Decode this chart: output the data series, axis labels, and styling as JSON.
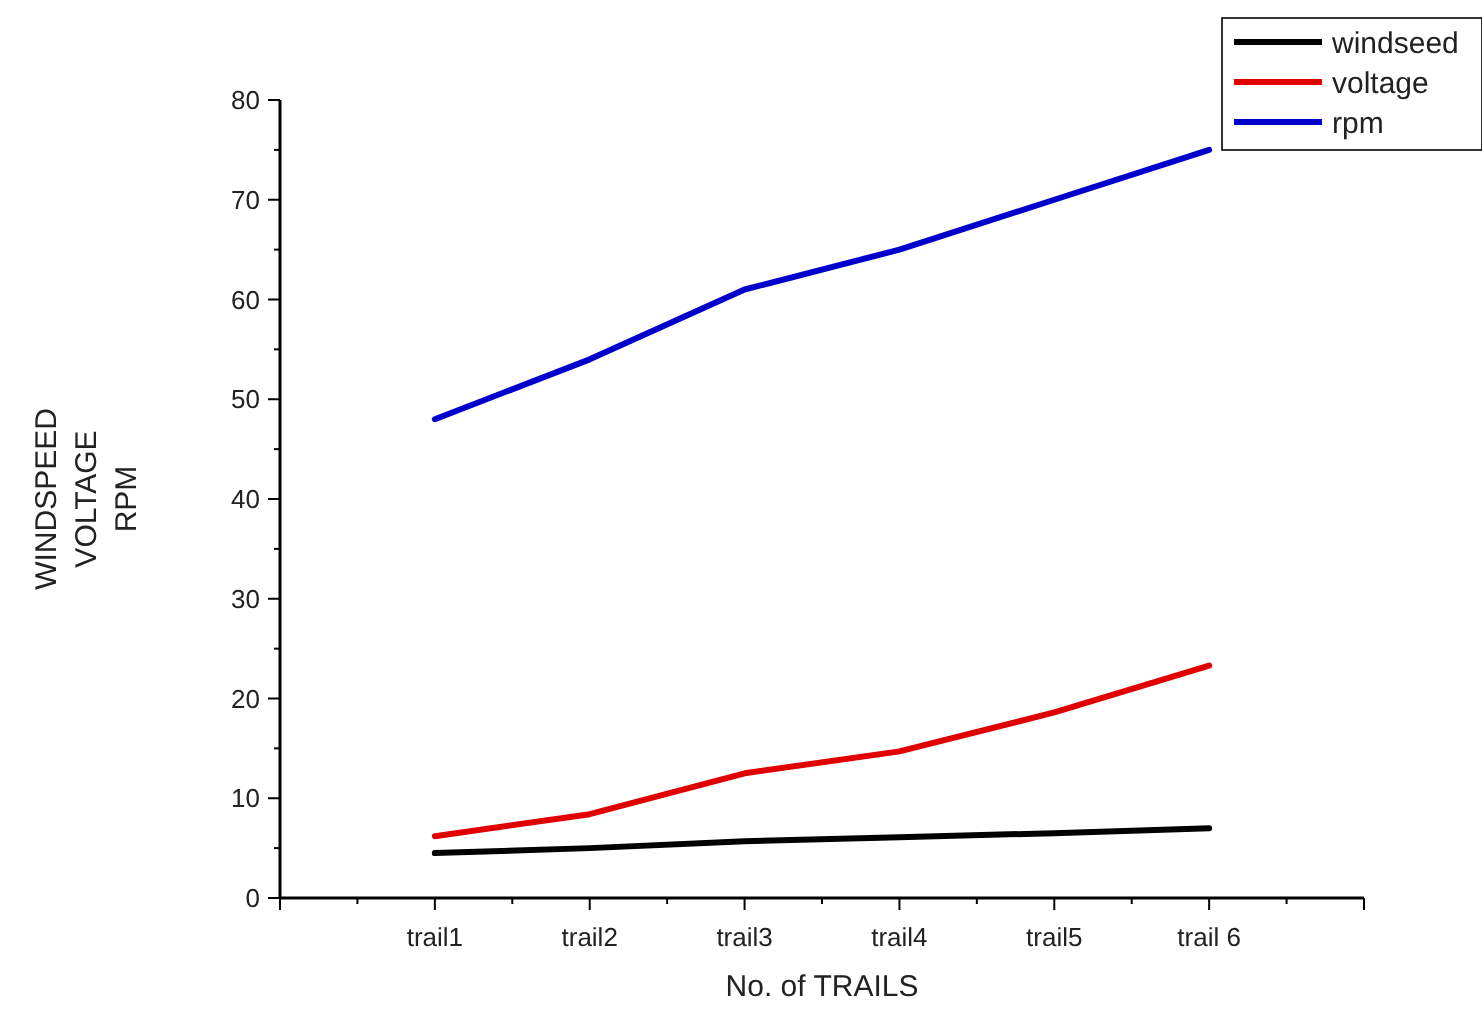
{
  "chart_data": {
    "type": "line",
    "xlabel": "No. of TRAILS",
    "ylabel": "WINDSPEED\nVOLTAGE\nRPM",
    "categories": [
      "trail1",
      "trail2",
      "trail3",
      "trail4",
      "trail5",
      "trail 6"
    ],
    "series": [
      {
        "name": "windseed",
        "color": "#000000",
        "values": [
          4.5,
          5,
          5.7,
          6.1,
          6.5,
          7
        ]
      },
      {
        "name": "voltage",
        "color": "#e00000",
        "values": [
          6.2,
          8.4,
          12.5,
          14.7,
          18.6,
          23.3
        ]
      },
      {
        "name": "rpm",
        "color": "#0000cc",
        "values": [
          48,
          54,
          61,
          65,
          70,
          75
        ]
      }
    ],
    "ylim": [
      0,
      80
    ],
    "yticks": [
      0,
      {
        "value": 5,
        "label": null
      },
      10,
      {
        "value": 15,
        "label": null
      },
      20,
      {
        "value": 25,
        "label": null
      },
      30,
      {
        "value": 35,
        "label": null
      },
      40,
      {
        "value": 45,
        "label": null
      },
      50,
      {
        "value": 55,
        "label": null
      },
      60,
      {
        "value": 65,
        "label": null
      },
      70,
      {
        "value": 75,
        "label": null
      },
      80
    ],
    "legend": "top right",
    "grid": false,
    "marker": "none",
    "line_style": "solid"
  }
}
